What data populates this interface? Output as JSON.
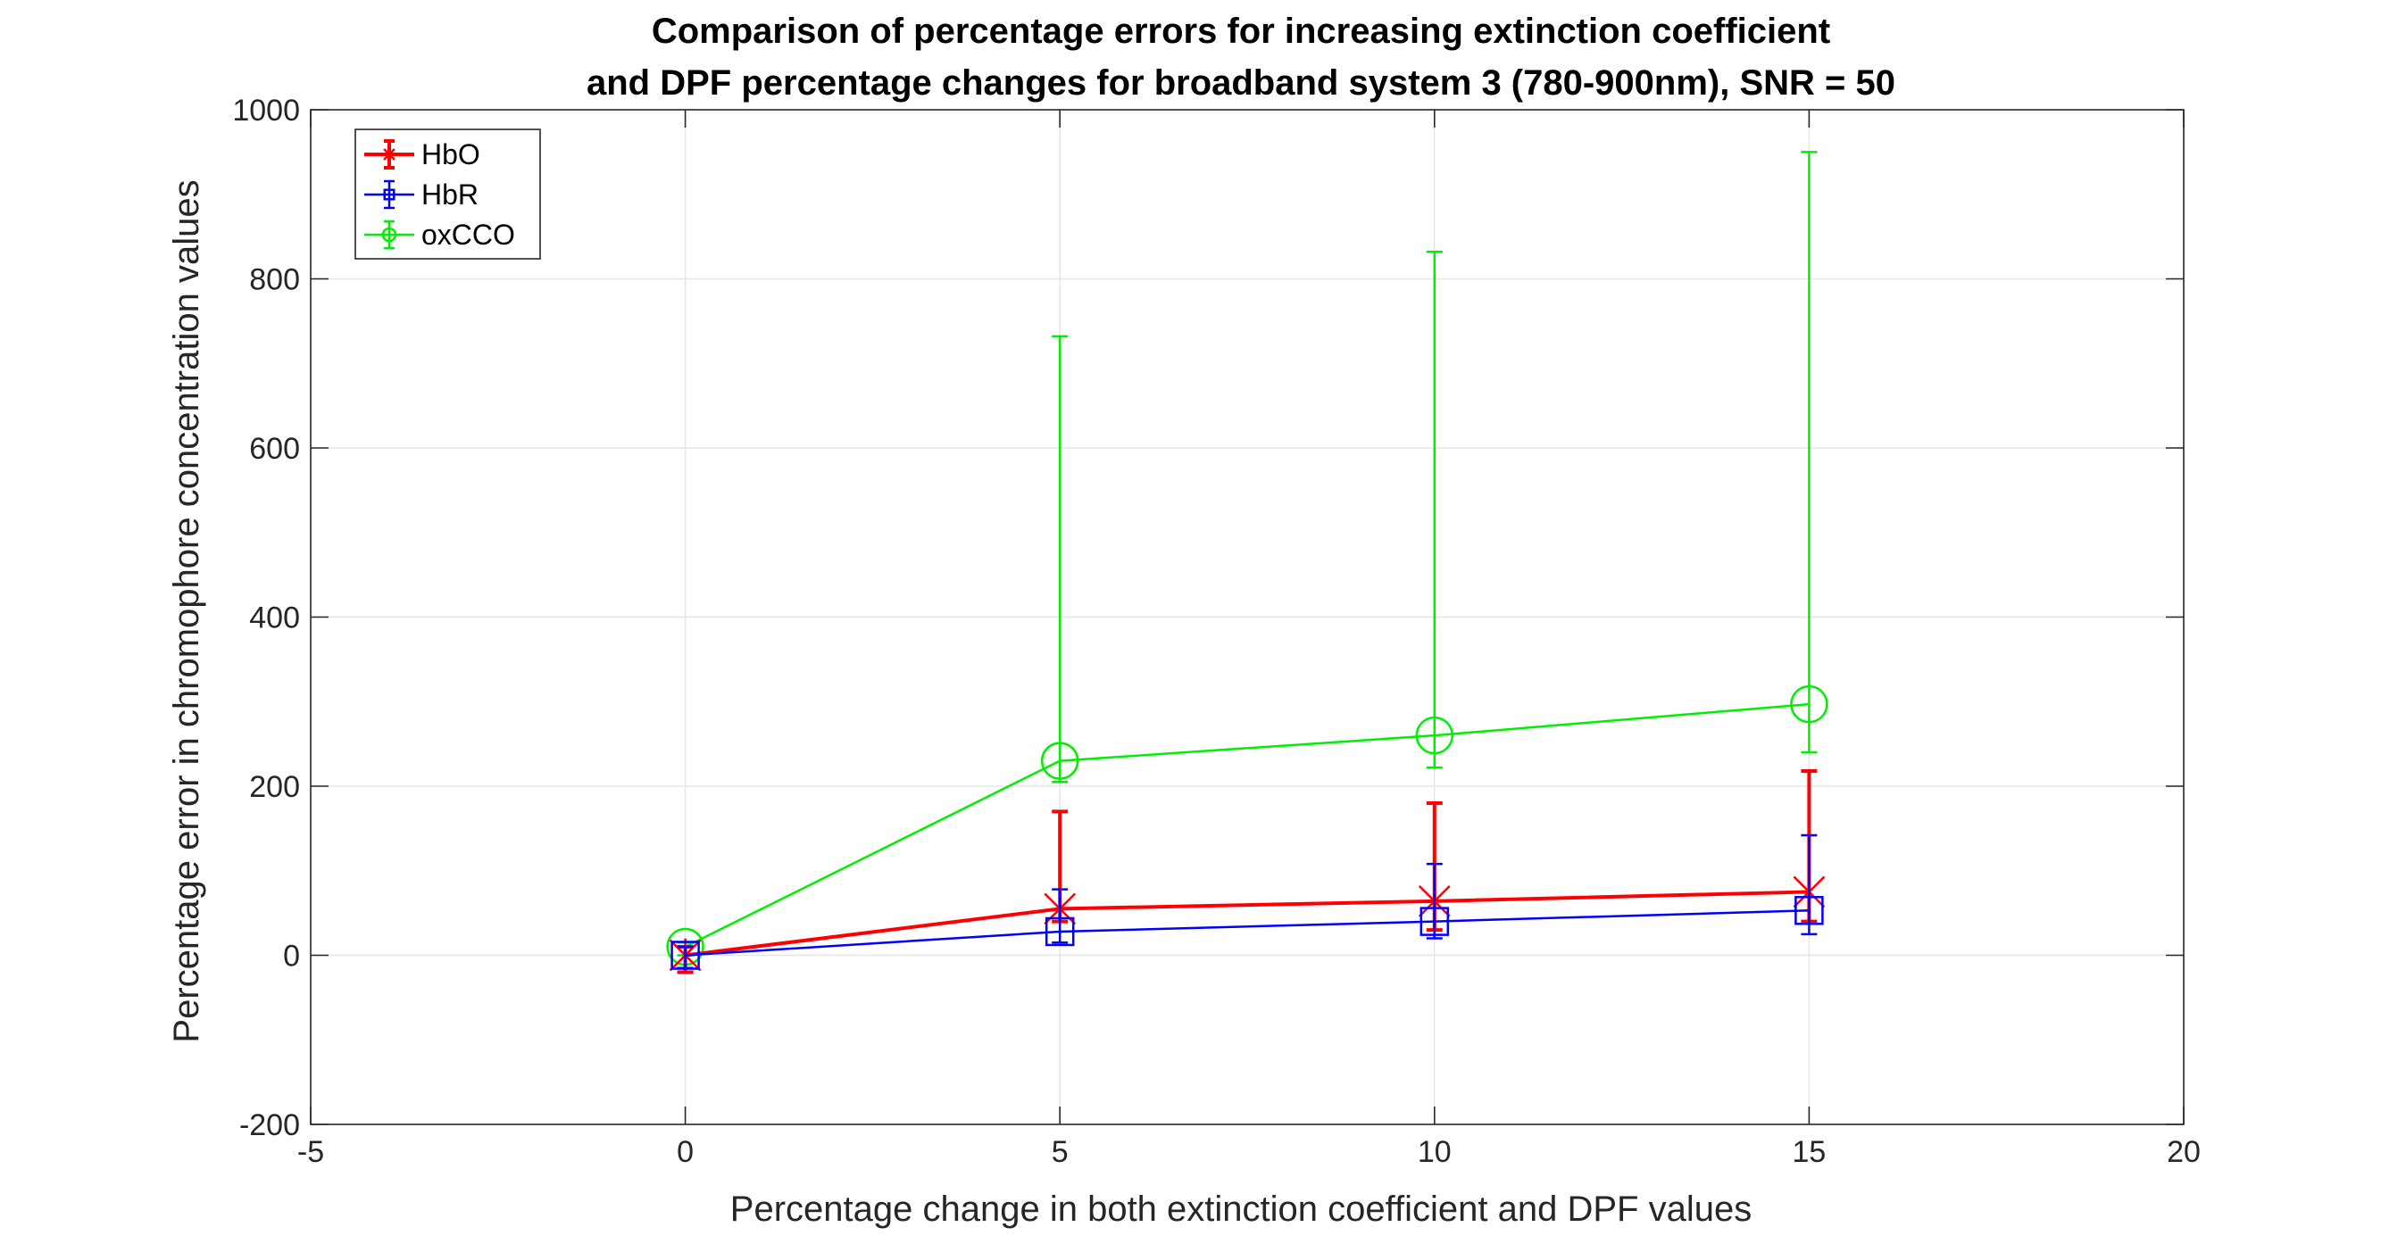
{
  "chart_data": {
    "type": "line",
    "title_lines": [
      "Comparison of percentage errors for increasing extinction coefficient",
      "and DPF percentage changes for broadband system 3 (780-900nm), SNR = 50"
    ],
    "xlabel": "Percentage change in both extinction coefficient and DPF values",
    "ylabel": "Percentage error in chromophore concentration values",
    "xlim": [
      -5,
      20
    ],
    "ylim": [
      -200,
      1000
    ],
    "xticks": [
      -5,
      0,
      5,
      10,
      15,
      20
    ],
    "yticks": [
      -200,
      0,
      200,
      400,
      600,
      800,
      1000
    ],
    "grid": true,
    "legend_position": "top-left",
    "x": [
      0,
      5,
      10,
      15
    ],
    "series": [
      {
        "name": "HbO",
        "color": "#ff0000",
        "marker": "x-star",
        "values": [
          0,
          55,
          64,
          75
        ],
        "err_low": [
          -20,
          40,
          30,
          40
        ],
        "err_high": [
          10,
          170,
          180,
          218
        ]
      },
      {
        "name": "HbR",
        "color": "#0000ff",
        "marker": "square",
        "values": [
          0,
          28,
          40,
          53
        ],
        "err_low": [
          -15,
          15,
          20,
          25
        ],
        "err_high": [
          10,
          78,
          108,
          142
        ]
      },
      {
        "name": "oxCCO",
        "color": "#00ee00",
        "marker": "circle",
        "values": [
          10,
          230,
          260,
          297
        ],
        "err_low": [
          0,
          205,
          222,
          240
        ],
        "err_high": [
          15,
          732,
          832,
          950
        ]
      }
    ]
  }
}
